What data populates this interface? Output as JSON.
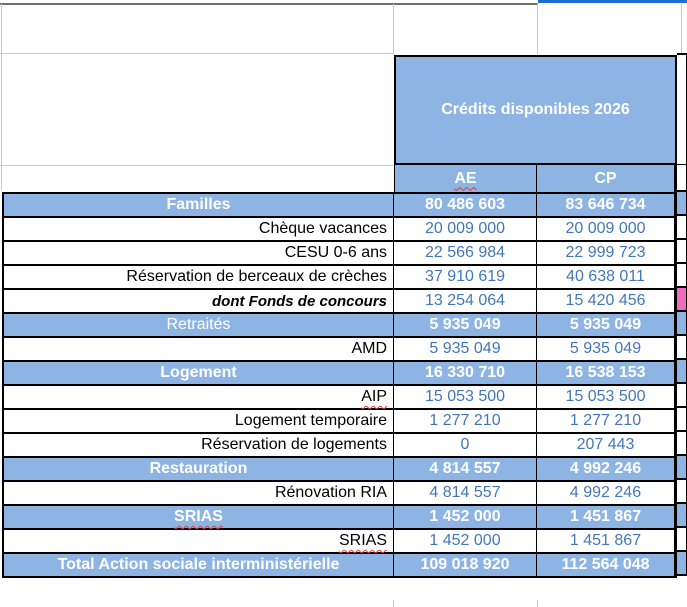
{
  "banner": {
    "title": "Crédits disponibles 2026"
  },
  "columns": [
    {
      "label": "AE",
      "spell": true
    },
    {
      "label": "CP",
      "spell": false
    }
  ],
  "rows": [
    {
      "label": "Familles",
      "style": "section",
      "ae": "80 486 603",
      "cp": "83 646 734",
      "sliver": "blue",
      "spell": false
    },
    {
      "label": "Chèque vacances",
      "style": "item",
      "ae": "20 009 000",
      "cp": "20 009 000",
      "sliver": "white",
      "spell": false
    },
    {
      "label": "CESU 0-6 ans",
      "style": "item",
      "ae": "22 566 984",
      "cp": "22 999 723",
      "sliver": "white",
      "spell": false
    },
    {
      "label": "Réservation de berceaux de crèches",
      "style": "item",
      "ae": "37 910 619",
      "cp": "40 638 011",
      "sliver": "white",
      "spell": false
    },
    {
      "label": "dont Fonds de concours",
      "style": "dont",
      "ae": "13 254 064",
      "cp": "15 420 456",
      "sliver": "pink",
      "spell": false
    },
    {
      "label": "Retraités",
      "style": "section-light",
      "ae": "5 935 049",
      "cp": "5 935 049",
      "sliver": "blue",
      "spell": false
    },
    {
      "label": "AMD",
      "style": "item",
      "ae": "5 935 049",
      "cp": "5 935 049",
      "sliver": "white",
      "spell": false
    },
    {
      "label": "Logement",
      "style": "section",
      "ae": "16 330 710",
      "cp": "16 538 153",
      "sliver": "blue",
      "spell": false
    },
    {
      "label": "AIP",
      "style": "item",
      "ae": "15 053 500",
      "cp": "15 053 500",
      "sliver": "white",
      "spell": true
    },
    {
      "label": "Logement temporaire",
      "style": "item",
      "ae": "1 277 210",
      "cp": "1 277 210",
      "sliver": "white",
      "spell": false
    },
    {
      "label": "Réservation de logements",
      "style": "item",
      "ae": "0",
      "cp": "207 443",
      "sliver": "white",
      "spell": false
    },
    {
      "label": "Restauration",
      "style": "section",
      "ae": "4 814 557",
      "cp": "4 992 246",
      "sliver": "blue",
      "spell": false
    },
    {
      "label": "Rénovation RIA",
      "style": "item",
      "ae": "4 814 557",
      "cp": "4 992 246",
      "sliver": "white",
      "spell": false
    },
    {
      "label": "SRIAS",
      "style": "section",
      "ae": "1 452 000",
      "cp": "1 451 867",
      "sliver": "blue",
      "spell": true
    },
    {
      "label": "SRIAS",
      "style": "item",
      "ae": "1 452 000",
      "cp": "1 451 867",
      "sliver": "white",
      "spell": true
    },
    {
      "label": "Total Action sociale interministérielle",
      "style": "total",
      "ae": "109 018 920",
      "cp": "112 564 048",
      "sliver": "blue",
      "spell": false
    }
  ],
  "colors": {
    "band_blue": "#8db4e2",
    "number_blue": "#4377bb",
    "pink_flag": "#ee6cc0",
    "top_line_blue": "#1d6fd3",
    "squiggle_red": "#e03b3b"
  }
}
